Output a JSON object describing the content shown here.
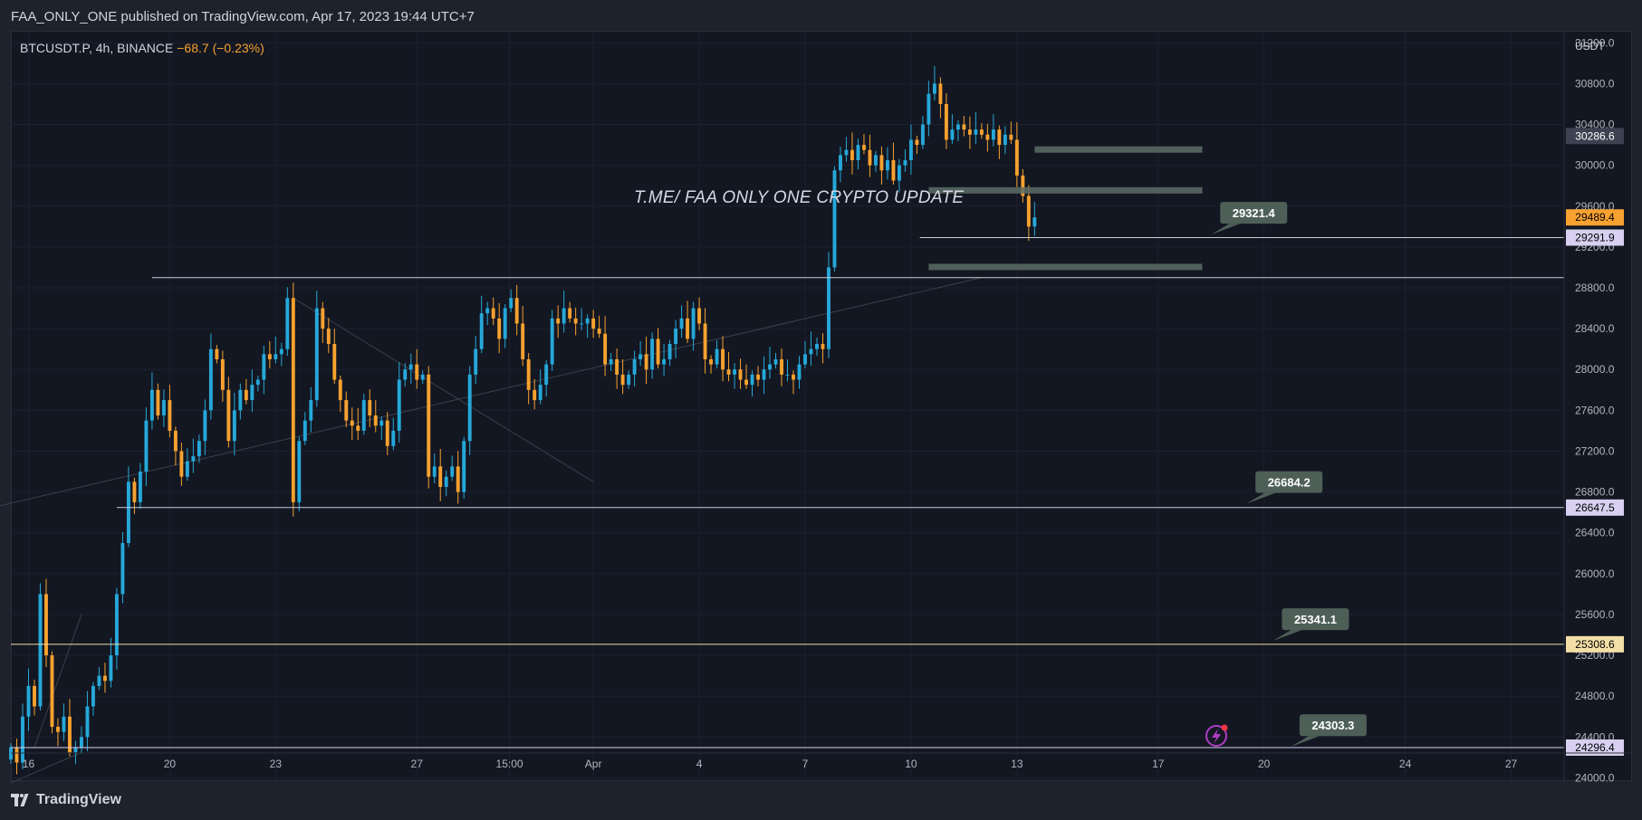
{
  "header": {
    "publisher_line": "FAA_ONLY_ONE published on TradingView.com, Apr 17, 2023 19:44 UTC+7"
  },
  "symbol": {
    "name": "BTCUSDT.P, 4h, BINANCE",
    "change": "−68.7 (−0.23%)"
  },
  "watermark": "T.ME/ FAA ONLY ONE CRYPTO UPDATE",
  "currency": "USDT",
  "footer": {
    "brand": "TradingView"
  },
  "colors": {
    "background": "#131722",
    "up": "#26a8d9",
    "down": "#f7a130",
    "grid": "#1e2230",
    "zone": "#5d6d66",
    "callout": "#4e5f57"
  },
  "icons": [
    "lightning-alert-icon",
    "tradingview-logo-icon"
  ],
  "chart_data": {
    "type": "candlestick",
    "symbol": "BTCUSDT.P",
    "timeframe": "4h",
    "ylim": [
      23800,
      31300
    ],
    "y_ticks": [
      24000,
      24400,
      24800,
      25200,
      25600,
      26000,
      26400,
      26800,
      27200,
      27600,
      28000,
      28400,
      28800,
      29200,
      29600,
      30000,
      30400,
      30800,
      31200
    ],
    "x_tick_labels": [
      "16",
      "20",
      "23",
      "27",
      "15:00",
      "Apr",
      "4",
      "7",
      "10",
      "13",
      "17",
      "20",
      "24",
      "27"
    ],
    "x_range": [
      "2023-03-15T12:00",
      "2023-04-28T12:00"
    ],
    "x_ticks": [
      {
        "label": "16",
        "t": "2023-03-16T00:00"
      },
      {
        "label": "20",
        "t": "2023-03-20T00:00"
      },
      {
        "label": "23",
        "t": "2023-03-23T00:00"
      },
      {
        "label": "27",
        "t": "2023-03-27T00:00"
      },
      {
        "label": "15:00",
        "t": "2023-03-29T15:00"
      },
      {
        "label": "Apr",
        "t": "2023-04-01T00:00"
      },
      {
        "label": "4",
        "t": "2023-04-04T00:00"
      },
      {
        "label": "7",
        "t": "2023-04-07T00:00"
      },
      {
        "label": "10",
        "t": "2023-04-10T00:00"
      },
      {
        "label": "13",
        "t": "2023-04-13T00:00"
      },
      {
        "label": "17",
        "t": "2023-04-17T00:00"
      },
      {
        "label": "20",
        "t": "2023-04-20T00:00"
      },
      {
        "label": "24",
        "t": "2023-04-24T00:00"
      },
      {
        "label": "27",
        "t": "2023-04-27T00:00"
      }
    ],
    "candles_start": "2023-03-15T12:00",
    "candles_interval_hours": 4,
    "closes": [
      24300,
      24150,
      24600,
      24900,
      24700,
      25800,
      25200,
      24500,
      24450,
      24600,
      24250,
      24300,
      24400,
      24700,
      24900,
      25000,
      24950,
      25200,
      25800,
      26300,
      26900,
      26700,
      27000,
      27500,
      27800,
      27550,
      27700,
      27400,
      27200,
      26950,
      27100,
      27150,
      27300,
      27600,
      28200,
      28100,
      27800,
      27300,
      27600,
      27800,
      27700,
      27850,
      27900,
      28150,
      28100,
      28150,
      28200,
      28700,
      26700,
      27300,
      27500,
      27700,
      28600,
      28400,
      28250,
      27900,
      27700,
      27500,
      27450,
      27400,
      27700,
      27550,
      27450,
      27500,
      27250,
      27400,
      27900,
      28000,
      28050,
      27900,
      27950,
      26950,
      27050,
      26850,
      26950,
      27050,
      26800,
      27300,
      27950,
      28200,
      28550,
      28600,
      28500,
      28300,
      28600,
      28700,
      28450,
      28100,
      27800,
      27700,
      27850,
      28050,
      28500,
      28450,
      28600,
      28500,
      28450,
      28450,
      28500,
      28400,
      28350,
      28050,
      28100,
      27950,
      27850,
      27950,
      28100,
      28150,
      28000,
      28300,
      28050,
      28100,
      28250,
      28400,
      28500,
      28300,
      28600,
      28450,
      28100,
      28050,
      28200,
      28000,
      27950,
      28000,
      27900,
      27850,
      27950,
      27900,
      28000,
      28050,
      28100,
      27950,
      27950,
      27900,
      28050,
      28150,
      28200,
      28250,
      28200,
      29000,
      29950,
      30100,
      30150,
      30050,
      30200,
      30150,
      30000,
      30100,
      29950,
      30050,
      29850,
      30000,
      30050,
      30250,
      30200,
      30400,
      30700,
      30800,
      30600,
      30250,
      30350,
      30400,
      30350,
      30300,
      30350,
      30300,
      30250,
      30350,
      30200,
      30300,
      30250,
      29900,
      29700,
      29400,
      29490
    ],
    "support_resistance_lines": [
      29291.9,
      26647.5,
      25308.6,
      24296.4,
      28900
    ],
    "zones": [
      30150,
      29750,
      29000
    ],
    "price_tags": [
      {
        "label": "30286.6",
        "style": "gray"
      },
      {
        "label": "29489.4",
        "style": "orange"
      },
      {
        "label": "29291.9",
        "style": "lavender"
      },
      {
        "label": "26647.5",
        "style": "lavender"
      },
      {
        "label": "25308.6",
        "style": "cream"
      },
      {
        "label": "24296.4",
        "style": "lavender"
      }
    ],
    "callouts": [
      "29321.4",
      "26684.2",
      "25341.1",
      "24303.3"
    ]
  }
}
